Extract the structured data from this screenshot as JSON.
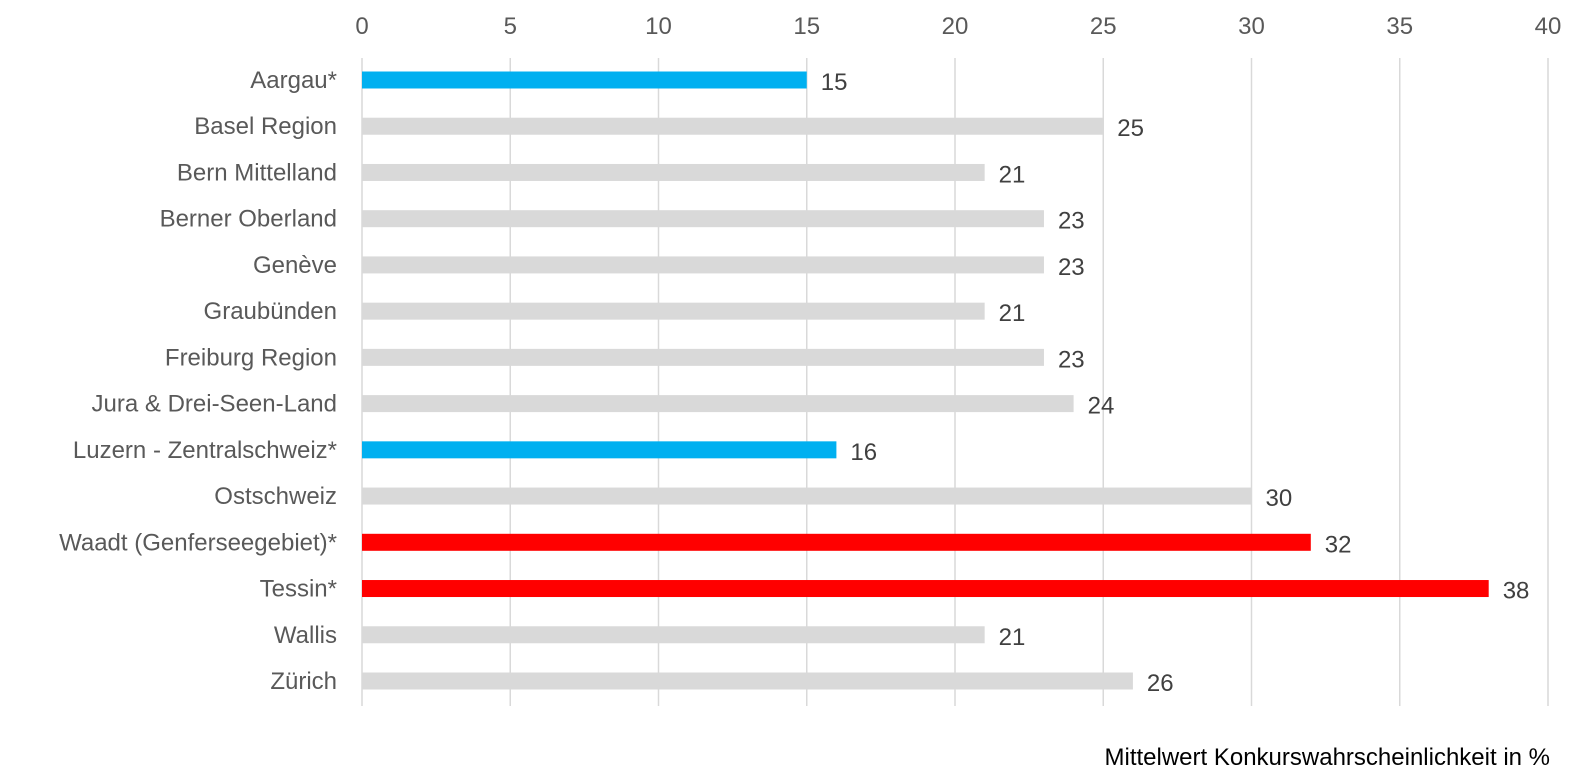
{
  "chart_data": {
    "type": "bar",
    "orientation": "horizontal",
    "categories": [
      "Aargau*",
      "Basel Region",
      "Bern Mittelland",
      "Berner Oberland",
      "Genève",
      "Graubünden",
      "Freiburg Region",
      "Jura & Drei-Seen-Land",
      "Luzern - Zentralschweiz*",
      "Ostschweiz",
      "Waadt (Genferseegebiet)*",
      "Tessin*",
      "Wallis",
      "Zürich"
    ],
    "values": [
      15,
      25,
      21,
      23,
      23,
      21,
      23,
      24,
      16,
      30,
      32,
      38,
      21,
      26
    ],
    "bar_colors": [
      "#00b0f0",
      "#d9d9d9",
      "#d9d9d9",
      "#d9d9d9",
      "#d9d9d9",
      "#d9d9d9",
      "#d9d9d9",
      "#d9d9d9",
      "#00b0f0",
      "#d9d9d9",
      "#ff0000",
      "#ff0000",
      "#d9d9d9",
      "#d9d9d9"
    ],
    "title": "",
    "xlabel": "Mittelwert Konkurswahrscheinlichkeit in %",
    "ylabel": "",
    "xlim": [
      0,
      40
    ],
    "x_ticks": [
      0,
      5,
      10,
      15,
      20,
      25,
      30,
      35,
      40
    ],
    "x_axis_position": "top",
    "grid": "vertical",
    "legend": "none",
    "data_labels": true
  }
}
